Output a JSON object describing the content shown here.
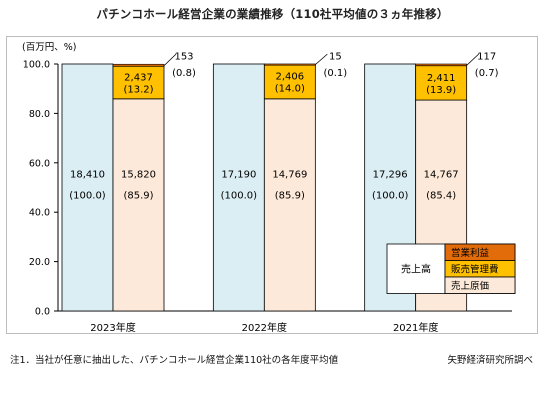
{
  "title": "パチンコホール経営企業の業績推移（110社平均値の３ヵ年推移）",
  "footnote": "注1．当社が任意に抽出した、パチンコホール経営企業110社の各年度平均値",
  "source": "矢野経済研究所調べ",
  "colors": {
    "revenue": "#daeef3",
    "cost": "#fde9d9",
    "sga": "#ffc000",
    "profit": "#e26b0a",
    "border": "#000000"
  },
  "chart_data": {
    "type": "bar",
    "unit_label": "(百万円、%)",
    "ylim": [
      0,
      100
    ],
    "yticks": [
      "0.0",
      "20.0",
      "40.0",
      "60.0",
      "80.0",
      "100.0"
    ],
    "grid": false,
    "categories": [
      "2023年度",
      "2022年度",
      "2021年度"
    ],
    "revenue": [
      {
        "value": "18,410",
        "pct": "(100.0)",
        "share": 100.0
      },
      {
        "value": "17,190",
        "pct": "(100.0)",
        "share": 100.0
      },
      {
        "value": "17,296",
        "pct": "(100.0)",
        "share": 100.0
      }
    ],
    "series": [
      {
        "name": "売上原価",
        "key": "cost",
        "values": [
          {
            "value": "15,820",
            "pct": "(85.9)",
            "share": 85.9
          },
          {
            "value": "14,769",
            "pct": "(85.9)",
            "share": 85.9
          },
          {
            "value": "14,767",
            "pct": "(85.4)",
            "share": 85.4
          }
        ]
      },
      {
        "name": "販売管理費",
        "key": "sga",
        "values": [
          {
            "value": "2,437",
            "pct": "(13.2)",
            "share": 13.2
          },
          {
            "value": "2,406",
            "pct": "(14.0)",
            "share": 14.0
          },
          {
            "value": "2,411",
            "pct": "(13.9)",
            "share": 13.9
          }
        ]
      },
      {
        "name": "営業利益",
        "key": "profit",
        "values": [
          {
            "value": "153",
            "pct": "(0.8)",
            "share": 0.8
          },
          {
            "value": "15",
            "pct": "(0.1)",
            "share": 0.1
          },
          {
            "value": "117",
            "pct": "(0.7)",
            "share": 0.7
          }
        ]
      }
    ],
    "legend": {
      "placement": "bottom-right",
      "group_label": "売上高",
      "items": [
        "営業利益",
        "販売管理費",
        "売上原価"
      ]
    }
  }
}
